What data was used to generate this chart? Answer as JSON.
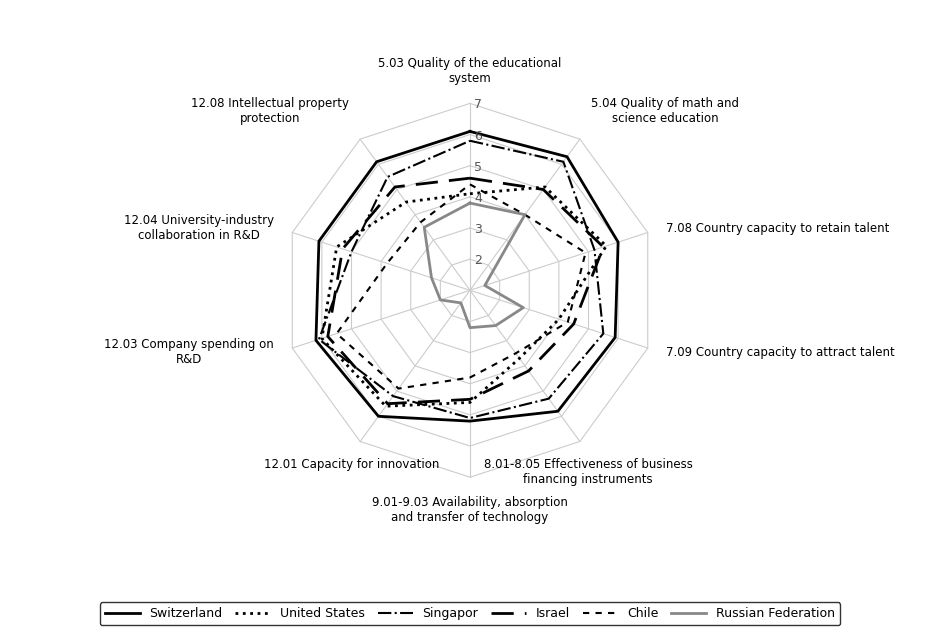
{
  "categories": [
    "5.03 Quality of the educational\nsystem",
    "5.04 Quality of math and\nscience education",
    "7.08 Country capacity to retain talent",
    "7.09 Country capacity to attract talent",
    "8.01-8.05 Effectiveness of business\nfinancing instruments",
    "9.01-9.03 Availability, absorption\nand transfer of technology",
    "12.01 Capacity for innovation",
    "12.03 Company spending on\nR&D",
    "12.04 University-industry\ncollaboration in R&D",
    "12.08 Intellectual property\nprotection"
  ],
  "series": [
    {
      "name": "Switzerland",
      "values": [
        6.1,
        6.3,
        6.0,
        5.9,
        5.8,
        5.2,
        6.0,
        6.2,
        6.1,
        6.1
      ],
      "color": "#000000",
      "linestyle": "-",
      "linewidth": 2.0,
      "dashes": null
    },
    {
      "name": "United States",
      "values": [
        4.1,
        5.1,
        5.6,
        4.0,
        3.7,
        4.6,
        5.6,
        6.0,
        5.5,
        4.5
      ],
      "color": "#000000",
      "linestyle": ":",
      "linewidth": 2.0,
      "dashes": null
    },
    {
      "name": "Singapor",
      "values": [
        5.8,
        6.1,
        5.2,
        5.5,
        5.3,
        5.1,
        5.2,
        6.1,
        5.0,
        5.5
      ],
      "color": "#000000",
      "linestyle": "-.",
      "linewidth": 1.5,
      "dashes": null
    },
    {
      "name": "Israel",
      "values": [
        4.6,
        5.0,
        5.5,
        4.5,
        4.2,
        4.5,
        5.5,
        5.8,
        5.3,
        5.1
      ],
      "color": "#000000",
      "linestyle": "--",
      "linewidth": 2.0,
      "dashes": [
        8,
        4
      ]
    },
    {
      "name": "Chile",
      "values": [
        4.4,
        4.0,
        4.9,
        4.3,
        3.5,
        3.8,
        4.9,
        5.5,
        3.8,
        3.7
      ],
      "color": "#000000",
      "linestyle": "--",
      "linewidth": 1.5,
      "dashes": [
        3,
        3
      ]
    },
    {
      "name": "Russian Federation",
      "values": [
        3.8,
        4.0,
        1.5,
        2.8,
        2.4,
        2.2,
        1.5,
        2.0,
        2.3,
        3.5
      ],
      "color": "#888888",
      "linestyle": "-",
      "linewidth": 2.0,
      "dashes": null
    }
  ],
  "r_min": 1,
  "r_max": 7,
  "r_ticks": [
    2,
    3,
    4,
    5,
    6,
    7
  ],
  "background_color": "#ffffff",
  "grid_color": "#cccccc",
  "spoke_color": "#cccccc"
}
